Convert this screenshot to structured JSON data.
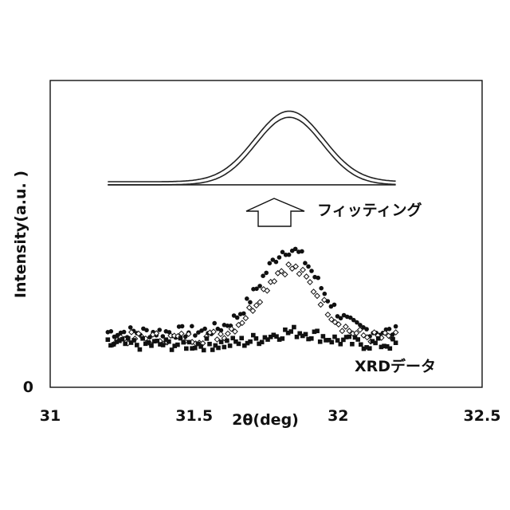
{
  "chart_data": {
    "type": "scatter",
    "xlabel": "2θ(deg)",
    "ylabel": "Intensity(a.u. )",
    "xlim": [
      31,
      32.5
    ],
    "ylim": [
      0,
      100
    ],
    "x_ticks": [
      "31",
      "31.5",
      "32",
      "32.5"
    ],
    "y_ticks": [
      "0"
    ],
    "annotations": {
      "fitting": "フィッティング",
      "xrd": "XRDデータ"
    },
    "fit_curves": [
      {
        "x_range": [
          31.2,
          32.2
        ],
        "baseline": 67,
        "peak_height": 23,
        "center": 31.83,
        "width": 0.12
      },
      {
        "x_range": [
          31.2,
          32.2
        ],
        "baseline": 66,
        "peak_height": 22,
        "center": 31.83,
        "width": 0.115
      }
    ],
    "series": [
      {
        "marker": "filled-circle",
        "x_range": [
          31.2,
          32.2
        ],
        "count": 90,
        "baseline": 18,
        "peak_height": 27,
        "center": 31.83,
        "width": 0.1
      },
      {
        "marker": "open-diamond",
        "x_range": [
          31.22,
          32.2
        ],
        "count": 80,
        "baseline": 16,
        "peak_height": 23,
        "center": 31.83,
        "width": 0.1
      },
      {
        "marker": "filled-square",
        "x_range": [
          31.2,
          32.2
        ],
        "count": 100,
        "baseline": 14,
        "peak_height": 4,
        "center": 31.85,
        "width": 0.1
      }
    ]
  }
}
